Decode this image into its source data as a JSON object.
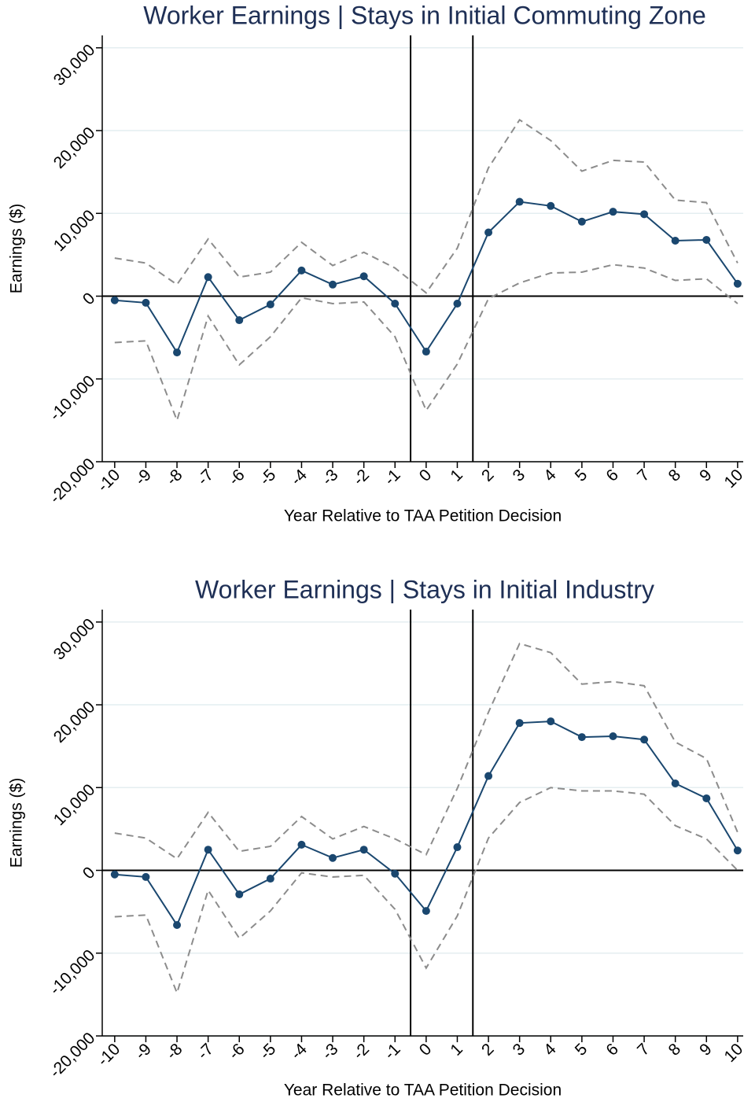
{
  "chart_data": [
    {
      "type": "line",
      "title": "Worker Earnings | Stays in Initial Commuting Zone",
      "x_label": "Year Relative to TAA Petition Decision",
      "y_label": "Earnings ($)",
      "x": [
        -10,
        -9,
        -8,
        -7,
        -6,
        -5,
        -4,
        -3,
        -2,
        -1,
        0,
        1,
        2,
        3,
        4,
        5,
        6,
        7,
        8,
        9,
        10
      ],
      "series": [
        {
          "color": "#1a476f",
          "style": "solid",
          "markers": true,
          "values": [
            -500,
            -800,
            -6800,
            2300,
            -2900,
            -1000,
            3100,
            1400,
            2400,
            -900,
            -6700,
            -900,
            7700,
            11400,
            10900,
            9000,
            10200,
            9900,
            6700,
            6800,
            1500
          ]
        },
        {
          "color": "#8c8c8c",
          "style": "dashed",
          "markers": false,
          "values": [
            4600,
            4000,
            1400,
            6900,
            2300,
            2900,
            6500,
            3700,
            5300,
            3400,
            400,
            5800,
            15500,
            21300,
            18800,
            15100,
            16400,
            16200,
            11600,
            11300,
            4000
          ]
        },
        {
          "color": "#8c8c8c",
          "style": "dashed",
          "markers": false,
          "values": [
            -5600,
            -5400,
            -15000,
            -2400,
            -8300,
            -4900,
            -200,
            -900,
            -700,
            -4900,
            -13800,
            -8200,
            -300,
            1600,
            2800,
            2900,
            3800,
            3400,
            1900,
            2100,
            -900
          ]
        }
      ],
      "xlim": [
        -10.4,
        10.18
      ],
      "ylim": [
        -20000,
        31500
      ],
      "xticks": [
        -10,
        -9,
        -8,
        -7,
        -6,
        -5,
        -4,
        -3,
        -2,
        -1,
        0,
        1,
        2,
        3,
        4,
        5,
        6,
        7,
        8,
        9,
        10
      ],
      "yticks": [
        {
          "value": -20000,
          "label": "-20,000"
        },
        {
          "value": -10000,
          "label": "-10,000"
        },
        0,
        {
          "value": 10000,
          "label": "10,000"
        },
        {
          "value": 20000,
          "label": "20,000"
        },
        {
          "value": 30000,
          "label": "30,000"
        }
      ],
      "grid": true,
      "reference_lines": {
        "x": [
          -0.5,
          1.5
        ],
        "y": [
          0
        ]
      }
    },
    {
      "type": "line",
      "title": "Worker Earnings | Stays in Initial Industry",
      "x_label": "Year Relative to TAA Petition Decision",
      "y_label": "Earnings ($)",
      "x": [
        -10,
        -9,
        -8,
        -7,
        -6,
        -5,
        -4,
        -3,
        -2,
        -1,
        0,
        1,
        2,
        3,
        4,
        5,
        6,
        7,
        8,
        9,
        10
      ],
      "series": [
        {
          "color": "#1a476f",
          "style": "solid",
          "markers": true,
          "values": [
            -500,
            -800,
            -6600,
            2500,
            -2900,
            -1000,
            3100,
            1500,
            2500,
            -400,
            -4900,
            2800,
            11400,
            17800,
            18000,
            16100,
            16200,
            15800,
            10500,
            8700,
            2400
          ]
        },
        {
          "color": "#8c8c8c",
          "style": "dashed",
          "markers": false,
          "values": [
            4500,
            3900,
            1400,
            7000,
            2300,
            2900,
            6500,
            3800,
            5300,
            3800,
            1900,
            9900,
            19100,
            27400,
            26300,
            22500,
            22800,
            22300,
            15500,
            13500,
            4600
          ]
        },
        {
          "color": "#8c8c8c",
          "style": "dashed",
          "markers": false,
          "values": [
            -5600,
            -5400,
            -14800,
            -2400,
            -8200,
            -4900,
            -300,
            -800,
            -600,
            -4700,
            -11800,
            -5500,
            3900,
            8200,
            10000,
            9600,
            9600,
            9200,
            5400,
            3800,
            0
          ]
        }
      ],
      "xlim": [
        -10.4,
        10.18
      ],
      "ylim": [
        -20000,
        31500
      ],
      "xticks": [
        -10,
        -9,
        -8,
        -7,
        -6,
        -5,
        -4,
        -3,
        -2,
        -1,
        0,
        1,
        2,
        3,
        4,
        5,
        6,
        7,
        8,
        9,
        10
      ],
      "yticks": [
        {
          "value": -20000,
          "label": "-20,000"
        },
        {
          "value": -10000,
          "label": "-10,000"
        },
        0,
        {
          "value": 10000,
          "label": "10,000"
        },
        {
          "value": 20000,
          "label": "20,000"
        },
        {
          "value": 30000,
          "label": "30,000"
        }
      ],
      "grid": true,
      "reference_lines": {
        "x": [
          -0.5,
          1.5
        ],
        "y": [
          0
        ]
      }
    }
  ]
}
